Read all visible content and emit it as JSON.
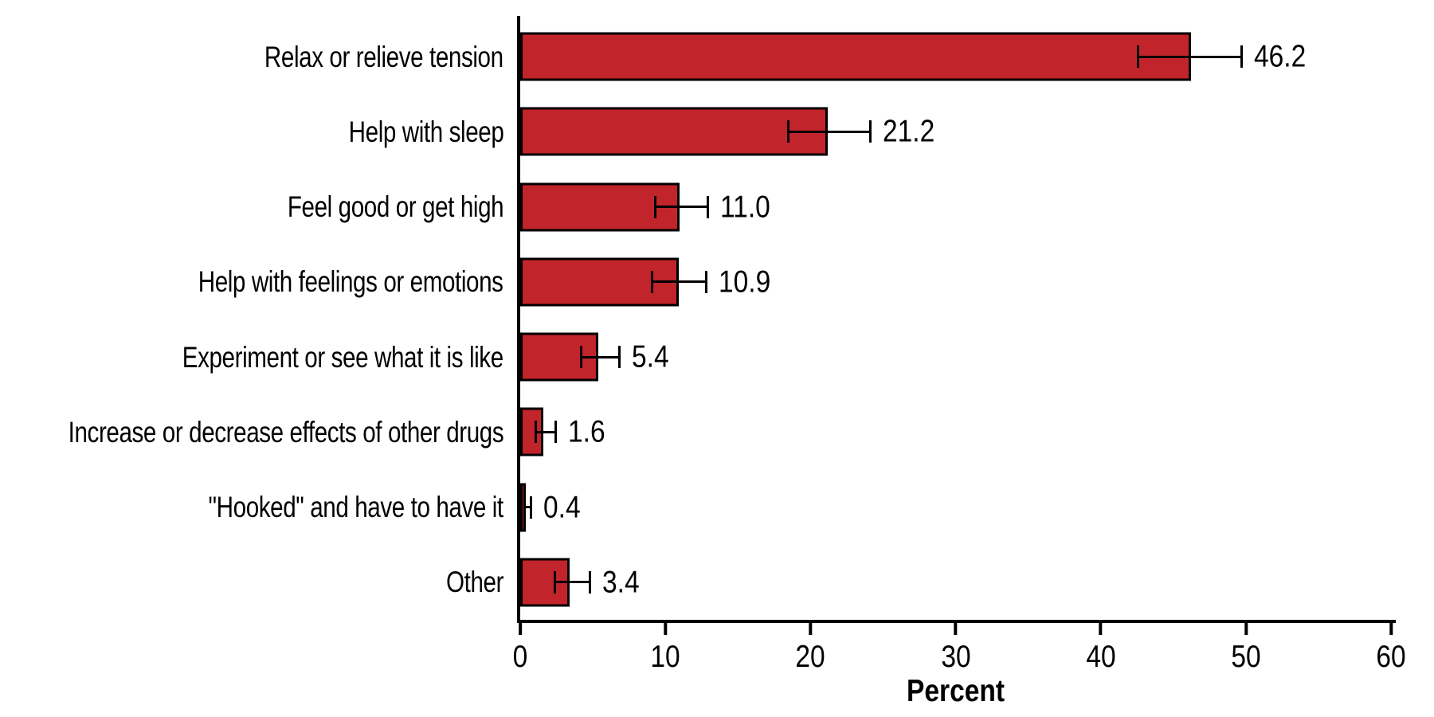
{
  "chart_data": {
    "type": "bar",
    "orientation": "horizontal",
    "title": "",
    "xlabel": "Percent",
    "categories": [
      "Relax or relieve tension",
      "Help with sleep",
      "Feel good or get high",
      "Help with feelings or emotions",
      "Experiment or see what it is like",
      "Increase or decrease effects of other drugs",
      "\"Hooked\" and have to have it",
      "Other"
    ],
    "values": [
      46.2,
      21.2,
      11.0,
      10.9,
      5.4,
      1.6,
      0.4,
      3.4
    ],
    "value_labels": [
      "46.2",
      "21.2",
      "11.0",
      "10.9",
      "5.4",
      "1.6",
      "0.4",
      "3.4"
    ],
    "error_bars": true,
    "error_low": [
      42.5,
      18.4,
      9.2,
      9.0,
      4.1,
      1.0,
      0.2,
      2.3
    ],
    "error_high": [
      49.8,
      24.2,
      13.0,
      12.9,
      6.9,
      2.5,
      0.8,
      4.9
    ],
    "x_ticks": [
      0,
      10,
      20,
      30,
      40,
      50,
      60
    ],
    "x_tick_labels": [
      "0",
      "10",
      "20",
      "30",
      "40",
      "50",
      "60"
    ],
    "xlim": [
      0,
      60
    ],
    "grid": false,
    "legend": false,
    "bar_color": "#C1242B",
    "bar_border_color": "#000000",
    "error_bar_color": "#000000",
    "axis_color": "#000000",
    "text_color": "#000000",
    "background_color": "#FFFFFF"
  }
}
